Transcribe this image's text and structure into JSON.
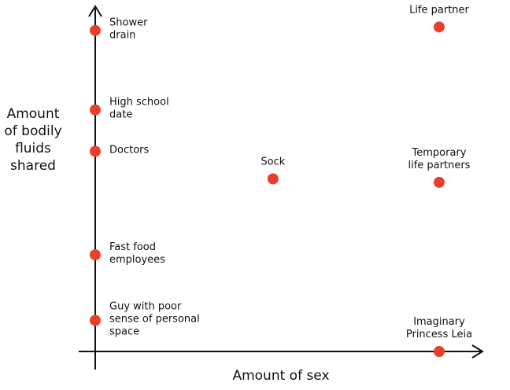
{
  "chart_data": {
    "type": "scatter",
    "x_label": "Amount of sex",
    "y_label": "Amount\nof bodily\nfluids\nshared",
    "xlim": [
      0,
      10
    ],
    "ylim": [
      0,
      10
    ],
    "color": "#e8402a",
    "x": [
      0,
      0,
      0,
      0,
      0,
      4.6,
      8.9,
      8.9,
      8.9
    ],
    "values": [
      9.3,
      7.0,
      5.8,
      2.8,
      0.9,
      5.0,
      4.9,
      9.4,
      0.0
    ],
    "point_labels": [
      "Shower\ndrain",
      "High school\ndate",
      "Doctors",
      "Fast food\nemployees",
      "Guy with poor\nsense of personal\nspace",
      "Sock",
      "Temporary\nlife partners",
      "Life partner",
      "Imaginary\nPrincess Leia"
    ]
  }
}
